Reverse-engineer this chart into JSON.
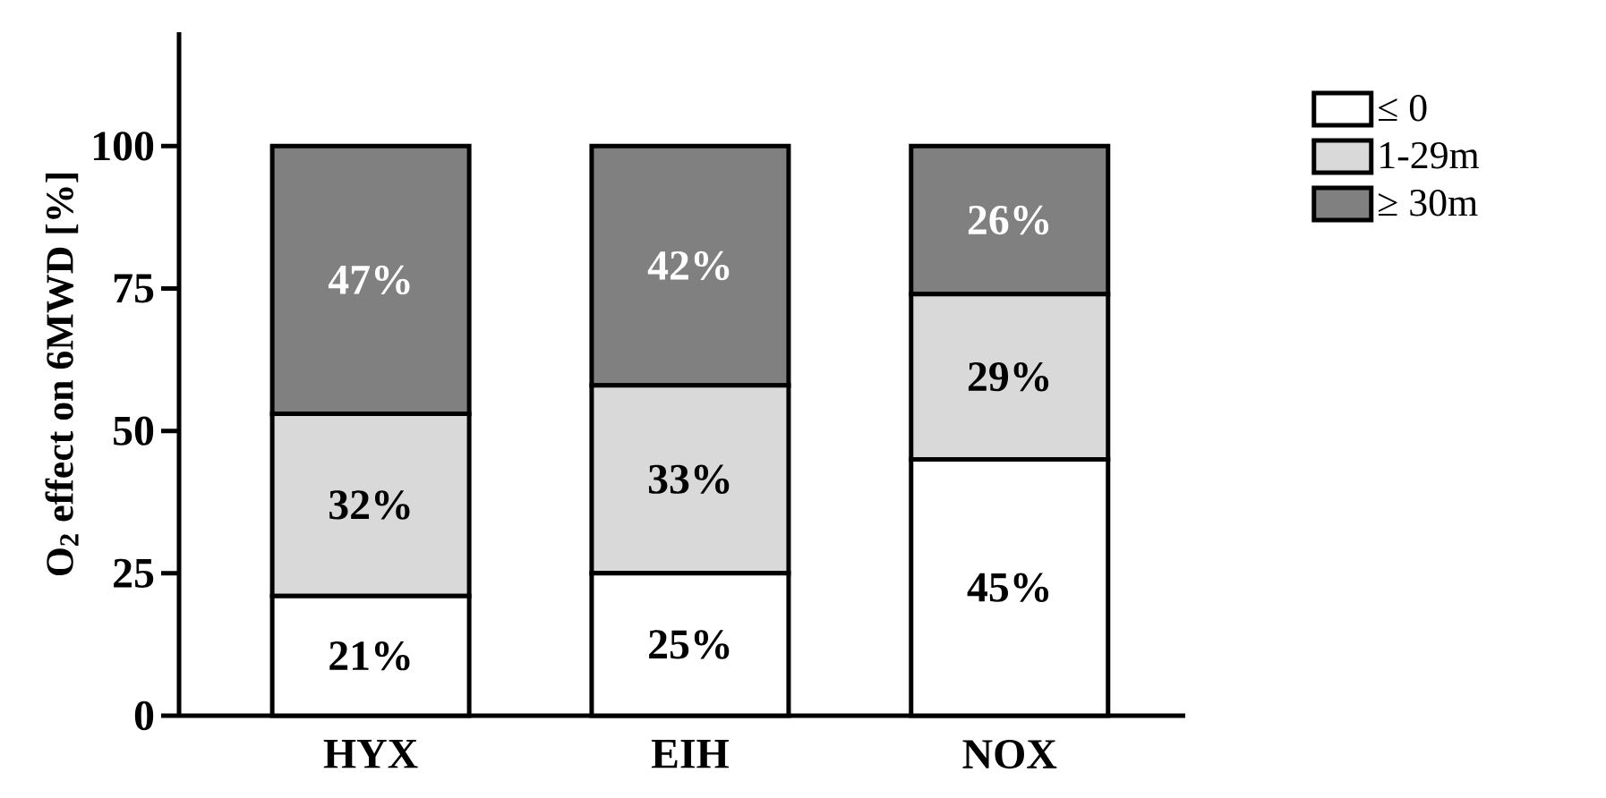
{
  "chart_data": {
    "type": "bar",
    "stacked": true,
    "ylabel": "O$_{2}$ effect on 6MWD [%]",
    "categories": [
      "HYX",
      "EIH",
      "NOX"
    ],
    "series": [
      {
        "name": "≤ 0",
        "color": "#ffffff",
        "values": [
          21,
          25,
          45
        ],
        "value_labels": [
          "21%",
          "25%",
          "45%"
        ]
      },
      {
        "name": "1-29m",
        "color": "#d9d9d9",
        "values": [
          32,
          33,
          29
        ],
        "value_labels": [
          "32%",
          "33%",
          "29%"
        ]
      },
      {
        "name": "≥ 30m",
        "color": "#808080",
        "values": [
          47,
          42,
          26
        ],
        "value_labels": [
          "47%",
          "42%",
          "26%"
        ]
      }
    ],
    "ylim": [
      0,
      120
    ],
    "yticks": [
      0,
      25,
      50,
      75,
      100
    ],
    "legend": "right"
  }
}
